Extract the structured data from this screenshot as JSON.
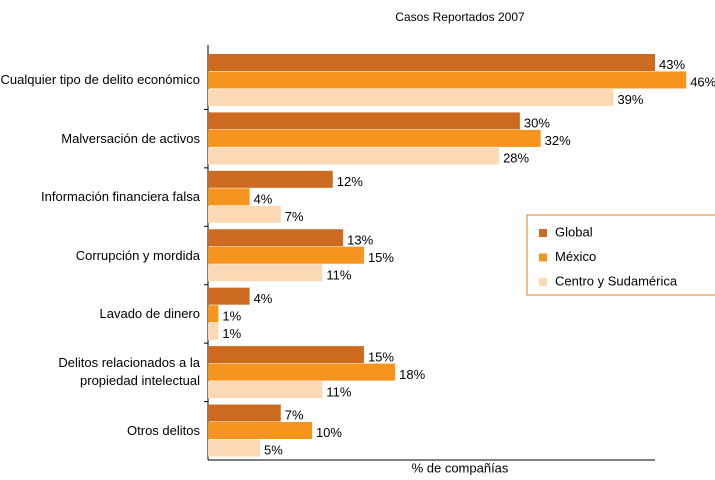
{
  "chart_data": {
    "type": "bar",
    "orientation": "horizontal",
    "title": "Casos Reportados 2007",
    "x_label": "% de compañías",
    "categories": [
      "Cualquier tipo de delito económico",
      "Malversación de activos",
      "Información financiera falsa",
      "Corrupción y mordida",
      "Lavado de dinero",
      "Delitos relacionados a la propiedad intelectual",
      "Otros delitos"
    ],
    "series": [
      {
        "name": "Global",
        "color": "#cc6a1f",
        "values": [
          43,
          30,
          12,
          13,
          4,
          15,
          7
        ],
        "value_labels": [
          "43%",
          "30%",
          "12%",
          "13%",
          "4%",
          "15%",
          "7%"
        ]
      },
      {
        "name": "México",
        "color": "#f7941d",
        "values": [
          46,
          32,
          4,
          15,
          1,
          18,
          10
        ],
        "value_labels": [
          "46%",
          "32%",
          "4%",
          "15%",
          "1%",
          "18%",
          "10%"
        ]
      },
      {
        "name": "Centro y Sudamérica",
        "color": "#fdd8b4",
        "values": [
          39,
          28,
          7,
          11,
          1,
          11,
          5
        ],
        "value_labels": [
          "39%",
          "28%",
          "7%",
          "11%",
          "1%",
          "11%",
          "5%"
        ]
      }
    ],
    "xlim": [
      0,
      48
    ],
    "legend": "right"
  }
}
